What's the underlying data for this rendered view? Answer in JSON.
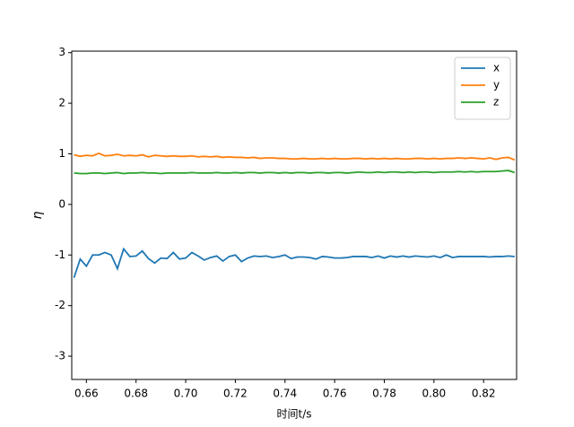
{
  "chart_data": {
    "type": "line",
    "xlabel": "时间t/s",
    "ylabel": "η",
    "x": [
      0.655,
      0.6575,
      0.66,
      0.6625,
      0.665,
      0.6675,
      0.67,
      0.6725,
      0.675,
      0.6775,
      0.68,
      0.6825,
      0.685,
      0.6875,
      0.69,
      0.6925,
      0.695,
      0.6975,
      0.7,
      0.7025,
      0.705,
      0.7075,
      0.71,
      0.7125,
      0.715,
      0.7175,
      0.72,
      0.7225,
      0.725,
      0.7275,
      0.73,
      0.7325,
      0.735,
      0.7375,
      0.74,
      0.7425,
      0.745,
      0.7475,
      0.75,
      0.7525,
      0.755,
      0.7575,
      0.76,
      0.7625,
      0.765,
      0.7675,
      0.77,
      0.7725,
      0.775,
      0.7775,
      0.78,
      0.7825,
      0.785,
      0.7875,
      0.79,
      0.7925,
      0.795,
      0.7975,
      0.8,
      0.8025,
      0.805,
      0.8075,
      0.81,
      0.8125,
      0.815,
      0.8175,
      0.82,
      0.8225,
      0.825,
      0.8275,
      0.83,
      0.8325
    ],
    "series": [
      {
        "name": "x",
        "color": "#1f77b4",
        "values": [
          -1.45,
          -1.08,
          -1.22,
          -1.0,
          -1.0,
          -0.95,
          -1.0,
          -1.27,
          -0.88,
          -1.03,
          -1.02,
          -0.92,
          -1.07,
          -1.16,
          -1.06,
          -1.07,
          -0.95,
          -1.08,
          -1.06,
          -0.95,
          -1.02,
          -1.1,
          -1.05,
          -1.02,
          -1.12,
          -1.03,
          -1.0,
          -1.13,
          -1.06,
          -1.02,
          -1.03,
          -1.02,
          -1.05,
          -1.03,
          -1.0,
          -1.07,
          -1.04,
          -1.04,
          -1.05,
          -1.08,
          -1.03,
          -1.04,
          -1.06,
          -1.06,
          -1.05,
          -1.03,
          -1.03,
          -1.03,
          -1.05,
          -1.02,
          -1.06,
          -1.02,
          -1.04,
          -1.02,
          -1.04,
          -1.02,
          -1.03,
          -1.04,
          -1.02,
          -1.05,
          -1.0,
          -1.05,
          -1.03,
          -1.03,
          -1.03,
          -1.03,
          -1.03,
          -1.04,
          -1.03,
          -1.03,
          -1.02,
          -1.03
        ]
      },
      {
        "name": "y",
        "color": "#ff7f0e",
        "values": [
          0.98,
          0.95,
          0.97,
          0.96,
          1.01,
          0.96,
          0.97,
          0.99,
          0.96,
          0.97,
          0.96,
          0.98,
          0.94,
          0.97,
          0.96,
          0.95,
          0.96,
          0.95,
          0.95,
          0.96,
          0.94,
          0.95,
          0.94,
          0.95,
          0.93,
          0.94,
          0.93,
          0.93,
          0.92,
          0.93,
          0.91,
          0.92,
          0.92,
          0.91,
          0.91,
          0.9,
          0.9,
          0.91,
          0.9,
          0.9,
          0.91,
          0.9,
          0.91,
          0.9,
          0.9,
          0.91,
          0.91,
          0.9,
          0.91,
          0.9,
          0.91,
          0.9,
          0.91,
          0.9,
          0.9,
          0.91,
          0.91,
          0.9,
          0.91,
          0.9,
          0.91,
          0.91,
          0.92,
          0.91,
          0.92,
          0.91,
          0.9,
          0.92,
          0.89,
          0.92,
          0.93,
          0.88
        ]
      },
      {
        "name": "z",
        "color": "#2ca02c",
        "values": [
          0.62,
          0.61,
          0.61,
          0.62,
          0.62,
          0.61,
          0.62,
          0.63,
          0.61,
          0.62,
          0.62,
          0.63,
          0.62,
          0.62,
          0.61,
          0.62,
          0.62,
          0.62,
          0.62,
          0.63,
          0.62,
          0.62,
          0.62,
          0.63,
          0.62,
          0.62,
          0.63,
          0.62,
          0.63,
          0.63,
          0.62,
          0.63,
          0.63,
          0.62,
          0.63,
          0.62,
          0.63,
          0.63,
          0.62,
          0.63,
          0.63,
          0.62,
          0.63,
          0.63,
          0.62,
          0.63,
          0.64,
          0.63,
          0.63,
          0.64,
          0.63,
          0.64,
          0.64,
          0.63,
          0.64,
          0.63,
          0.64,
          0.64,
          0.63,
          0.64,
          0.64,
          0.64,
          0.65,
          0.64,
          0.65,
          0.64,
          0.65,
          0.65,
          0.65,
          0.66,
          0.67,
          0.63
        ]
      }
    ],
    "xlim": [
      0.6541,
      0.8333
    ],
    "ylim": [
      -3.46,
      3.03
    ],
    "xticks": [
      0.66,
      0.68,
      {
        "value": 0.7,
        "label": "0.70"
      },
      0.72,
      0.74,
      0.76,
      0.78,
      {
        "value": 0.8,
        "label": "0.80"
      },
      0.82
    ],
    "yticks": [
      -3,
      -2,
      -1,
      0,
      1,
      2,
      3
    ],
    "legend": "upper right"
  }
}
